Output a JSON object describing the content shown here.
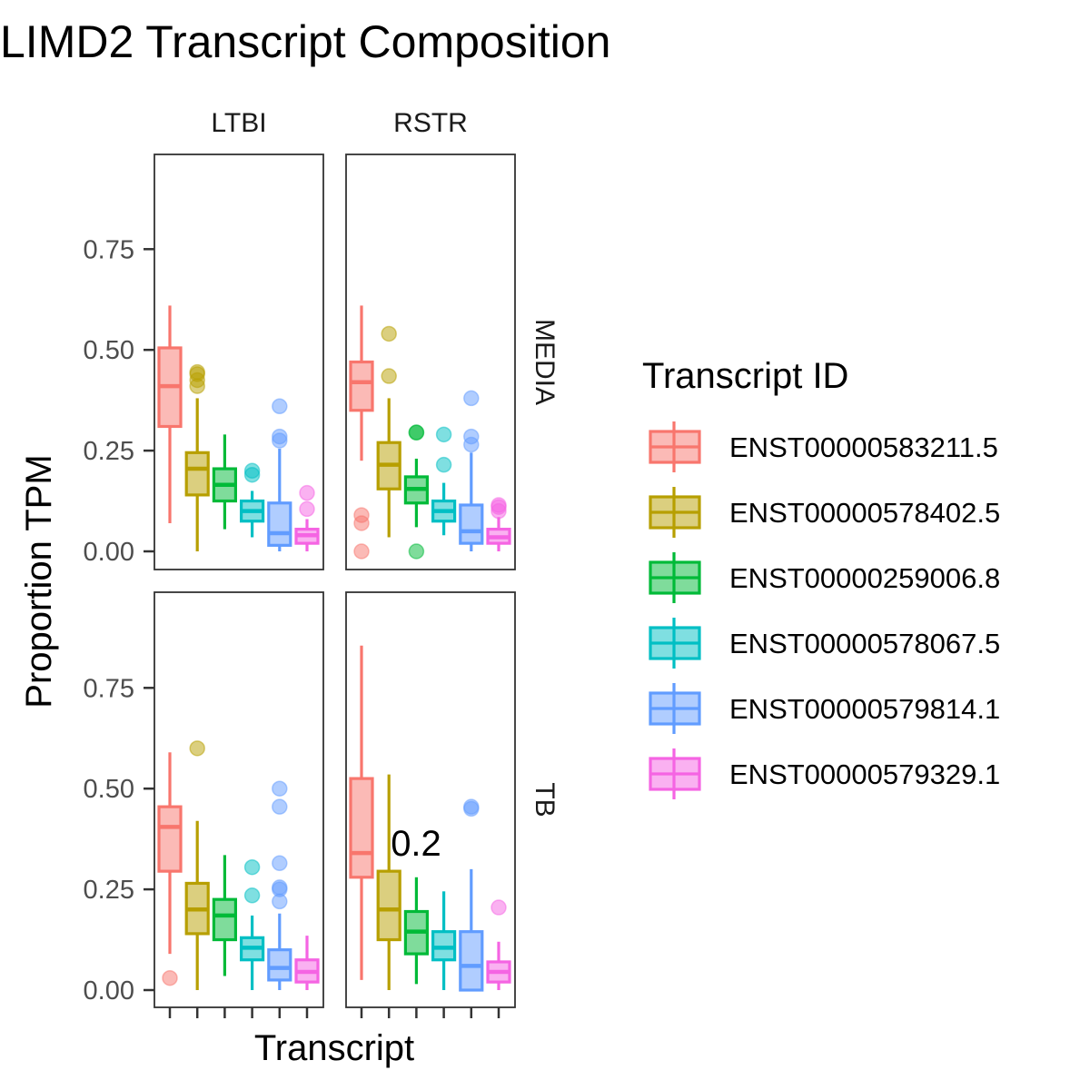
{
  "chart_data": {
    "type": "box",
    "title": "LIMD2 Transcript Composition",
    "xlabel": "Transcript",
    "ylabel": "Proportion TPM",
    "ylim": [
      -0.04,
      0.98
    ],
    "yticks": [
      "0.00",
      "0.25",
      "0.50",
      "0.75"
    ],
    "ytick_values": [
      0,
      0.25,
      0.5,
      0.75
    ],
    "grid": false,
    "legend": {
      "title": "Transcript ID",
      "position": "right",
      "entries": [
        "ENST00000583211.5",
        "ENST00000578402.5",
        "ENST00000259006.8",
        "ENST00000578067.5",
        "ENST00000579814.1",
        "ENST00000579329.1"
      ]
    },
    "series_colors": [
      "#F8766D",
      "#B79F00",
      "#00BA38",
      "#00BFC4",
      "#619CFF",
      "#F564E3"
    ],
    "col_facets": [
      "LTBI",
      "RSTR"
    ],
    "row_facets": [
      "MEDIA",
      "TB"
    ],
    "annotation": {
      "text": "0.2",
      "panel": "RSTR-TB",
      "x": 2.5,
      "y": 0.365
    },
    "panels": [
      {
        "col": "LTBI",
        "row": "MEDIA",
        "boxes": [
          {
            "q1": 0.31,
            "median": 0.41,
            "q3": 0.505,
            "whisker_low": 0.07,
            "whisker_high": 0.61,
            "outliers": []
          },
          {
            "q1": 0.14,
            "median": 0.205,
            "q3": 0.245,
            "whisker_low": 0.0,
            "whisker_high": 0.38,
            "outliers": [
              0.41,
              0.425,
              0.44,
              0.445
            ]
          },
          {
            "q1": 0.125,
            "median": 0.165,
            "q3": 0.205,
            "whisker_low": 0.055,
            "whisker_high": 0.29,
            "outliers": []
          },
          {
            "q1": 0.075,
            "median": 0.1,
            "q3": 0.125,
            "whisker_low": 0.035,
            "whisker_high": 0.15,
            "outliers": [
              0.19,
              0.2
            ]
          },
          {
            "q1": 0.015,
            "median": 0.045,
            "q3": 0.12,
            "whisker_low": 0.0,
            "whisker_high": 0.255,
            "outliers": [
              0.275,
              0.285,
              0.36
            ]
          },
          {
            "q1": 0.02,
            "median": 0.04,
            "q3": 0.055,
            "whisker_low": 0.0,
            "whisker_high": 0.08,
            "outliers": [
              0.105,
              0.145
            ]
          }
        ]
      },
      {
        "col": "RSTR",
        "row": "MEDIA",
        "boxes": [
          {
            "q1": 0.35,
            "median": 0.42,
            "q3": 0.47,
            "whisker_low": 0.225,
            "whisker_high": 0.61,
            "outliers": [
              0.0,
              0.07,
              0.09
            ]
          },
          {
            "q1": 0.155,
            "median": 0.215,
            "q3": 0.27,
            "whisker_low": 0.035,
            "whisker_high": 0.38,
            "outliers": [
              0.435,
              0.54
            ]
          },
          {
            "q1": 0.12,
            "median": 0.155,
            "q3": 0.185,
            "whisker_low": 0.06,
            "whisker_high": 0.23,
            "outliers": [
              0.0,
              0.295,
              0.295
            ]
          },
          {
            "q1": 0.075,
            "median": 0.1,
            "q3": 0.125,
            "whisker_low": 0.04,
            "whisker_high": 0.17,
            "outliers": [
              0.215,
              0.29
            ]
          },
          {
            "q1": 0.02,
            "median": 0.05,
            "q3": 0.115,
            "whisker_low": 0.0,
            "whisker_high": 0.245,
            "outliers": [
              0.265,
              0.285,
              0.38
            ]
          },
          {
            "q1": 0.02,
            "median": 0.035,
            "q3": 0.055,
            "whisker_low": 0.0,
            "whisker_high": 0.085,
            "outliers": [
              0.1,
              0.11,
              0.115
            ]
          }
        ]
      },
      {
        "col": "LTBI",
        "row": "TB",
        "boxes": [
          {
            "q1": 0.295,
            "median": 0.405,
            "q3": 0.455,
            "whisker_low": 0.09,
            "whisker_high": 0.59,
            "outliers": [
              0.03
            ]
          },
          {
            "q1": 0.14,
            "median": 0.2,
            "q3": 0.265,
            "whisker_low": 0.0,
            "whisker_high": 0.42,
            "outliers": [
              0.6
            ]
          },
          {
            "q1": 0.125,
            "median": 0.185,
            "q3": 0.225,
            "whisker_low": 0.035,
            "whisker_high": 0.335,
            "outliers": []
          },
          {
            "q1": 0.075,
            "median": 0.105,
            "q3": 0.13,
            "whisker_low": 0.0,
            "whisker_high": 0.185,
            "outliers": [
              0.235,
              0.305
            ]
          },
          {
            "q1": 0.025,
            "median": 0.055,
            "q3": 0.1,
            "whisker_low": 0.0,
            "whisker_high": 0.19,
            "outliers": [
              0.22,
              0.25,
              0.255,
              0.315,
              0.455,
              0.5
            ]
          },
          {
            "q1": 0.02,
            "median": 0.045,
            "q3": 0.075,
            "whisker_low": 0.0,
            "whisker_high": 0.135,
            "outliers": []
          }
        ]
      },
      {
        "col": "RSTR",
        "row": "TB",
        "boxes": [
          {
            "q1": 0.28,
            "median": 0.34,
            "q3": 0.525,
            "whisker_low": 0.025,
            "whisker_high": 0.855,
            "outliers": []
          },
          {
            "q1": 0.125,
            "median": 0.2,
            "q3": 0.295,
            "whisker_low": 0.0,
            "whisker_high": 0.535,
            "outliers": []
          },
          {
            "q1": 0.09,
            "median": 0.145,
            "q3": 0.195,
            "whisker_low": 0.015,
            "whisker_high": 0.28,
            "outliers": []
          },
          {
            "q1": 0.075,
            "median": 0.105,
            "q3": 0.145,
            "whisker_low": 0.0,
            "whisker_high": 0.245,
            "outliers": []
          },
          {
            "q1": 0.0,
            "median": 0.06,
            "q3": 0.145,
            "whisker_low": 0.0,
            "whisker_high": 0.3,
            "outliers": [
              0.45,
              0.455
            ]
          },
          {
            "q1": 0.02,
            "median": 0.045,
            "q3": 0.07,
            "whisker_low": 0.0,
            "whisker_high": 0.12,
            "outliers": [
              0.205
            ]
          }
        ]
      }
    ]
  }
}
